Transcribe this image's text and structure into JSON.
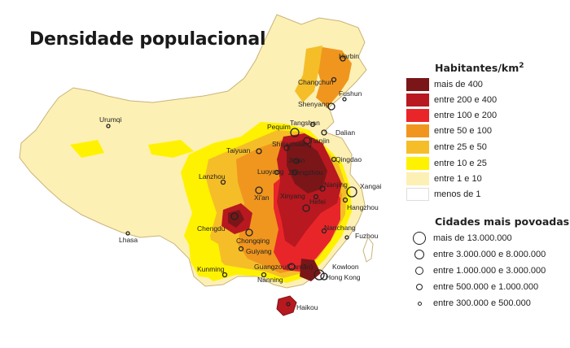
{
  "title": "Densidade populacional",
  "legend": {
    "title": "Habitantes/km",
    "title_sup": "2",
    "classes": [
      {
        "label": "mais de 400",
        "color": "#7a1618"
      },
      {
        "label": "entre 200 e 400",
        "color": "#b8181f"
      },
      {
        "label": "entre 100 e 200",
        "color": "#e8262a"
      },
      {
        "label": "entre 50 e 100",
        "color": "#f0961e"
      },
      {
        "label": "entre 25 e 50",
        "color": "#f5be28"
      },
      {
        "label": "entre 10 e 25",
        "color": "#fff200"
      },
      {
        "label": "entre 1 e 10",
        "color": "#fdf0b4"
      },
      {
        "label": "menos de 1",
        "color": "#ffffff"
      }
    ]
  },
  "cities_legend": {
    "title": "Cidades mais povoadas",
    "classes": [
      {
        "label": "mais de 13.000.000"
      },
      {
        "label": "entre 3.000.000 e 8.000.000"
      },
      {
        "label": "entre 1.000.000 e 3.000.000"
      },
      {
        "label": "entre 500.000 e 1.000.000"
      },
      {
        "label": "entre 300.000 e 500.000"
      }
    ]
  },
  "cities": [
    {
      "name": "Harbin"
    },
    {
      "name": "Changchun"
    },
    {
      "name": "Shenyang"
    },
    {
      "name": "Fushun"
    },
    {
      "name": "Dalian"
    },
    {
      "name": "Urumqi"
    },
    {
      "name": "Pequim"
    },
    {
      "name": "Tangshan"
    },
    {
      "name": "Tianjin"
    },
    {
      "name": "Taiyuan"
    },
    {
      "name": "Shijiazhuang"
    },
    {
      "name": "Jinan"
    },
    {
      "name": "Qingdao"
    },
    {
      "name": "Lanzhou"
    },
    {
      "name": "Luoyang"
    },
    {
      "name": "Zhengzhou"
    },
    {
      "name": "Xi'an"
    },
    {
      "name": "Xinyang"
    },
    {
      "name": "Nanjing"
    },
    {
      "name": "Hefei"
    },
    {
      "name": "Xangai"
    },
    {
      "name": "Hangzhou"
    },
    {
      "name": "Chengdu"
    },
    {
      "name": "Chongqing"
    },
    {
      "name": "Guiyang"
    },
    {
      "name": "Lhasa"
    },
    {
      "name": "Nanchang"
    },
    {
      "name": "Fuzhou"
    },
    {
      "name": "Kunming"
    },
    {
      "name": "Guangzou(Cantão)"
    },
    {
      "name": "Nanning"
    },
    {
      "name": "Kowloon"
    },
    {
      "name": "Hong Kong"
    },
    {
      "name": "Haikou"
    }
  ]
}
